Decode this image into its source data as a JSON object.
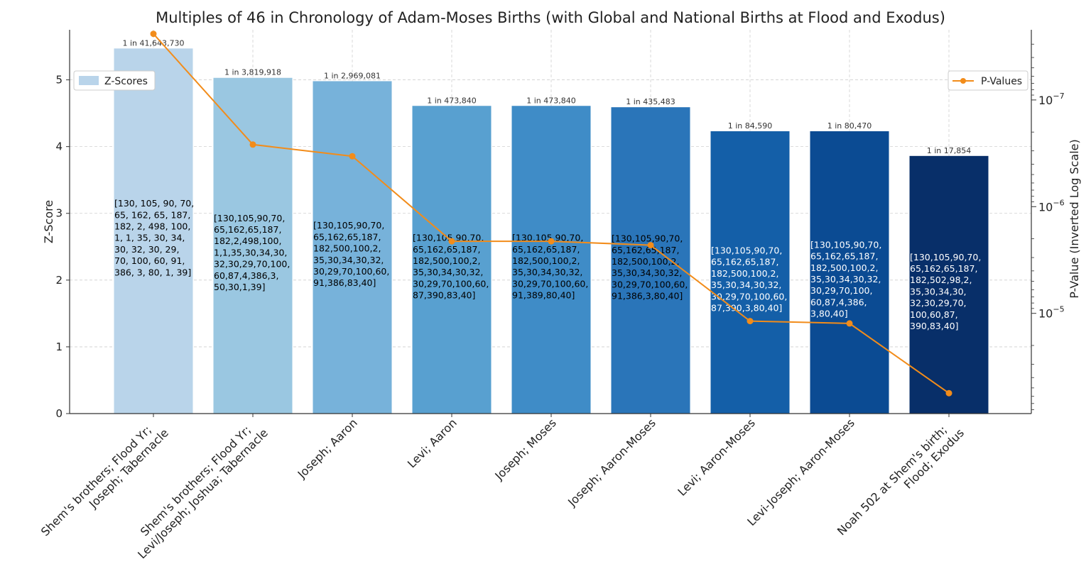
{
  "chart_data": {
    "type": "bar",
    "title": "Multiples of 46 in Chronology of Adam-Moses Births (with Global and National Births at Flood and Exodus)",
    "ylabel": "Z-Score",
    "y2label": "P-Value (Inverted Log Scale)",
    "ylim": [
      0,
      5.75
    ],
    "y_ticks": [
      0,
      1,
      2,
      3,
      4,
      5
    ],
    "y2_scale": "log-inverted",
    "y2_ticks": [
      "10^{-7}",
      "10^{-6}",
      "10^{-5}"
    ],
    "grid": true,
    "categories": [
      "Shem's brothers; Flood Yr;\nJoseph; Tabernacle",
      "Shem's brothers; Flood Yr;\nLevi/Joseph; Joshua; Tabernacle",
      "Joseph; Aaron",
      "Levi; Aaron",
      "Joseph; Moses",
      "Joseph; Aaron-Moses",
      "Levi; Aaron-Moses",
      "Levi-Joseph; Aaron-Moses",
      "Noah 502 at Shem's birth;\nFlood; Exodus"
    ],
    "series": [
      {
        "name": "Z-Scores",
        "type": "bar",
        "values": [
          5.47,
          5.03,
          4.98,
          4.61,
          4.61,
          4.59,
          4.23,
          4.23,
          3.86
        ],
        "colors": [
          "#b9d4ea",
          "#9ac7e1",
          "#77b2da",
          "#58a0d0",
          "#3f8cc7",
          "#2a75b9",
          "#145fa8",
          "#0b4b93",
          "#082f69"
        ]
      },
      {
        "name": "P-Values",
        "type": "line",
        "color": "#f28c1a",
        "odds_labels": [
          "1 in 41,643,730",
          "1 in 3,819,918",
          "1 in 2,969,081",
          "1 in 473,840",
          "1 in 473,840",
          "1 in 435,483",
          "1 in 84,590",
          "1 in 80,470",
          "1 in 17,854"
        ],
        "values": [
          2.401e-08,
          2.618e-07,
          3.368e-07,
          2.11e-06,
          2.11e-06,
          2.296e-06,
          1.182e-05,
          1.243e-05,
          5.601e-05
        ]
      }
    ],
    "annotations": [
      [
        "[130, 105, 90, 70,",
        "65, 162, 65, 187,",
        "182, 2, 498, 100,",
        "1, 1, 35, 30, 34,",
        "30, 32, 30, 29,",
        "70, 100, 60, 91,",
        "386, 3, 80, 1, 39]"
      ],
      [
        "[130,105,90,70,",
        "65,162,65,187,",
        "182,2,498,100,",
        "1,1,35,30,34,30,",
        "32,30,29,70,100,",
        "60,87,4,386,3,",
        "50,30,1,39]"
      ],
      [
        "[130,105,90,70,",
        "65,162,65,187,",
        "182,500,100,2,",
        "35,30,34,30,32,",
        "30,29,70,100,60,",
        "91,386,83,40]"
      ],
      [
        "[130,105,90,70,",
        "65,162,65,187,",
        "182,500,100,2,",
        "35,30,34,30,32,",
        "30,29,70,100,60,",
        "87,390,83,40]"
      ],
      [
        "[130,105,90,70,",
        "65,162,65,187,",
        "182,500,100,2,",
        "35,30,34,30,32,",
        "30,29,70,100,60,",
        "91,389,80,40]"
      ],
      [
        "[130,105,90,70,",
        "65,162,65,187,",
        "182,500,100,2,",
        "35,30,34,30,32,",
        "30,29,70,100,60,",
        "91,386,3,80,40]"
      ],
      [
        "[130,105,90,70,",
        "65,162,65,187,",
        "182,500,100,2,",
        "35,30,34,30,32,",
        "30,29,70,100,60,",
        "87,390,3,80,40]"
      ],
      [
        "[130,105,90,70,",
        "65,162,65,187,",
        "182,500,100,2,",
        "35,30,34,30,32,",
        "30,29,70,100,",
        "60,87,4,386,",
        "3,80,40]"
      ],
      [
        "[130,105,90,70,",
        "65,162,65,187,",
        "182,502,98,2,",
        "35,30,34,30,",
        "32,30,29,70,",
        "100,60,87,",
        "390,83,40]"
      ]
    ],
    "annotation_colors": [
      "#000000",
      "#000000",
      "#000000",
      "#000000",
      "#000000",
      "#000000",
      "#ffffff",
      "#ffffff",
      "#ffffff"
    ],
    "legend": [
      {
        "label": "Z-Scores",
        "position": "top-left"
      },
      {
        "label": "P-Values",
        "position": "top-right"
      }
    ]
  }
}
